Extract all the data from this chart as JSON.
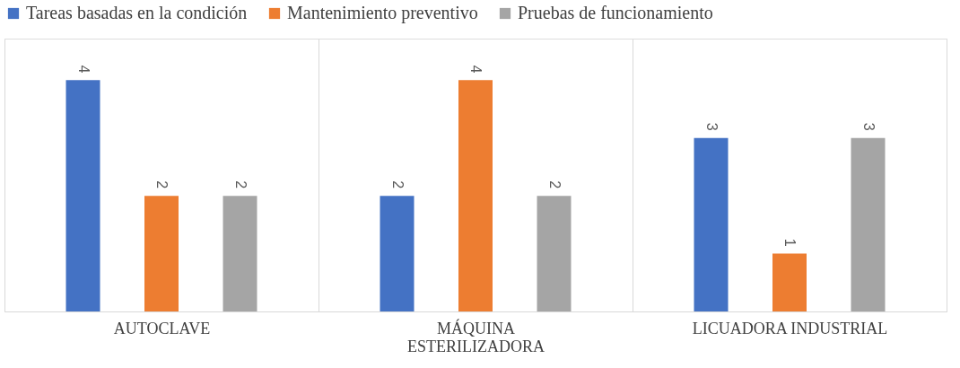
{
  "chart_data": {
    "type": "bar",
    "categories": [
      "AUTOCLAVE",
      "MÁQUINA ESTERILIZADORA",
      "LICUADORA INDUSTRIAL"
    ],
    "series": [
      {
        "name": "Tareas basadas en la condición",
        "color": "#4472c4",
        "values": [
          4,
          2,
          3
        ]
      },
      {
        "name": "Mantenimiento preventivo",
        "color": "#ed7d31",
        "values": [
          2,
          4,
          1
        ]
      },
      {
        "name": "Pruebas de funcionamiento",
        "color": "#a5a5a5",
        "values": [
          2,
          2,
          3
        ]
      }
    ],
    "data_labels": true,
    "grid": "x",
    "legend": "top"
  }
}
